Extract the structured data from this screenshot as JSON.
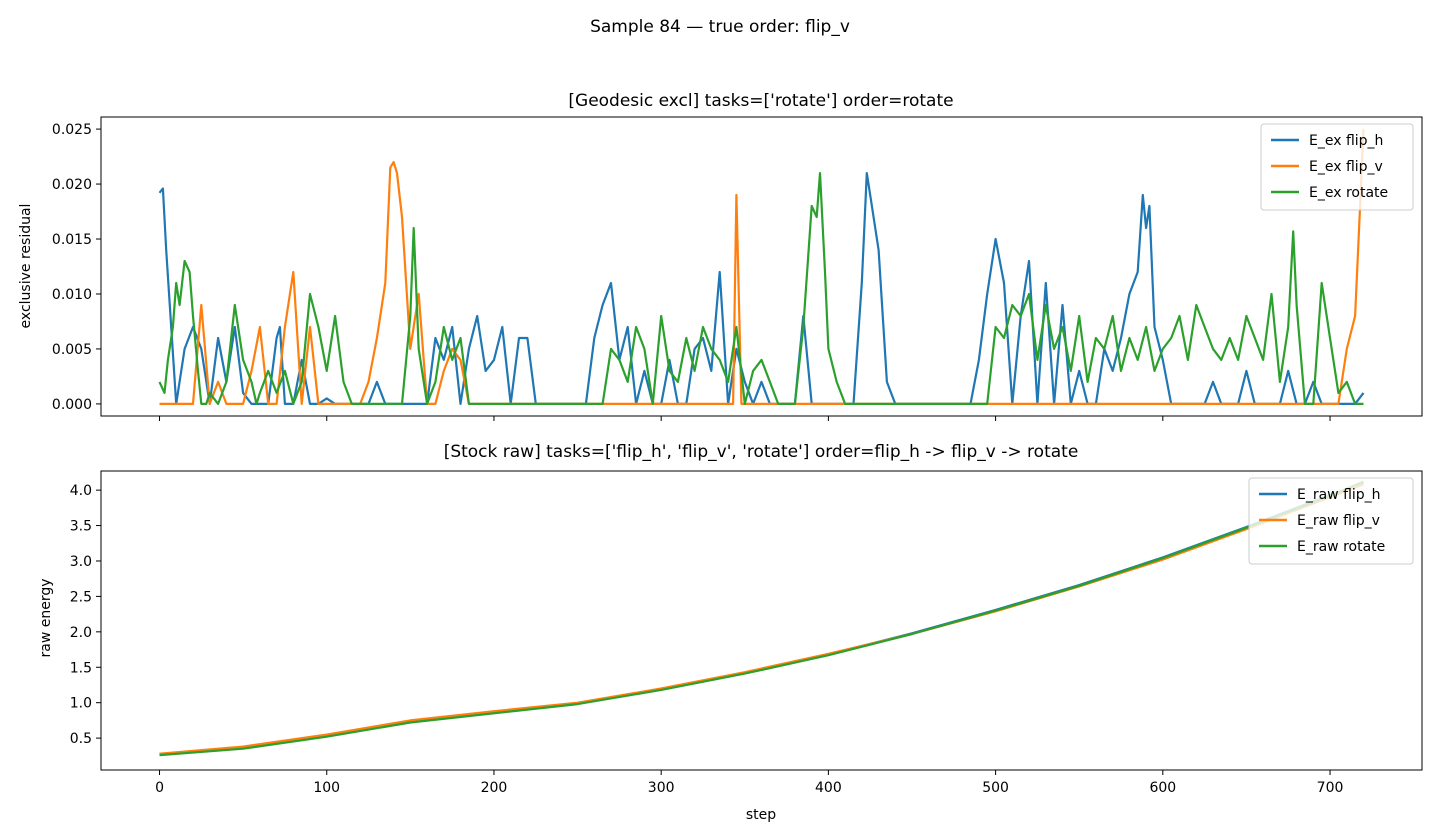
{
  "suptitle": "Sample 84 — true order: flip_v",
  "colors": {
    "blue": "#1f77b4",
    "orange": "#ff7f0e",
    "green": "#2ca02c"
  },
  "chart_data": [
    {
      "type": "line",
      "title": "[Geodesic excl] tasks=['rotate'] order=rotate",
      "xlabel": "",
      "ylabel": "exclusive residual",
      "xlim": [
        -35,
        755
      ],
      "ylim": [
        -0.0011,
        0.0261
      ],
      "xticks": [
        0,
        100,
        200,
        300,
        400,
        500,
        600,
        700
      ],
      "yticks": [
        0.0,
        0.005,
        0.01,
        0.015,
        0.02,
        0.025
      ],
      "ytick_labels": [
        "0.000",
        "0.005",
        "0.010",
        "0.015",
        "0.020",
        "0.025"
      ],
      "legend": "top-right",
      "grid": false,
      "series": [
        {
          "name": "E_ex flip_h",
          "color": "#1f77b4",
          "x": [
            0,
            2,
            4,
            10,
            15,
            20,
            25,
            30,
            35,
            40,
            45,
            50,
            55,
            60,
            65,
            70,
            72,
            75,
            80,
            85,
            90,
            95,
            100,
            105,
            108,
            110,
            115,
            120,
            125,
            130,
            135,
            140,
            145,
            150,
            155,
            160,
            165,
            170,
            175,
            180,
            185,
            190,
            195,
            200,
            205,
            210,
            215,
            220,
            225,
            230,
            235,
            240,
            245,
            250,
            255,
            260,
            265,
            270,
            275,
            280,
            285,
            290,
            295,
            300,
            305,
            310,
            315,
            320,
            325,
            330,
            335,
            340,
            345,
            350,
            355,
            360,
            365,
            370,
            375,
            380,
            385,
            390,
            395,
            400,
            405,
            410,
            415,
            420,
            423,
            425,
            430,
            435,
            440,
            445,
            450,
            455,
            460,
            465,
            470,
            475,
            480,
            485,
            490,
            495,
            500,
            505,
            510,
            515,
            520,
            525,
            530,
            535,
            540,
            545,
            550,
            555,
            560,
            565,
            570,
            575,
            580,
            585,
            588,
            590,
            592,
            595,
            600,
            605,
            610,
            615,
            620,
            625,
            630,
            635,
            640,
            645,
            650,
            655,
            660,
            665,
            670,
            675,
            680,
            685,
            690,
            695,
            700,
            705,
            710,
            715,
            720
          ],
          "y": [
            0.0192,
            0.0196,
            0.014,
            0.0,
            0.005,
            0.007,
            0.005,
            0.0,
            0.006,
            0.002,
            0.007,
            0.001,
            0.0,
            0.0,
            0.0,
            0.006,
            0.007,
            0.0,
            0.0,
            0.004,
            0.0,
            0.0,
            0.0005,
            0.0,
            0.0,
            0.0,
            0.0,
            0.0,
            0.0,
            0.002,
            0.0,
            0.0,
            0.0,
            0.0,
            0.0,
            0.0,
            0.006,
            0.004,
            0.007,
            0.0,
            0.005,
            0.008,
            0.003,
            0.004,
            0.007,
            0.0,
            0.006,
            0.006,
            0.0,
            0.0,
            0.0,
            0.0,
            0.0,
            0.0,
            0.0,
            0.006,
            0.009,
            0.011,
            0.004,
            0.007,
            0.0,
            0.003,
            0.0,
            0.0,
            0.004,
            0.0,
            0.0,
            0.005,
            0.006,
            0.003,
            0.012,
            0.0,
            0.005,
            0.002,
            0.0,
            0.002,
            0.0,
            0.0,
            0.0,
            0.0,
            0.008,
            0.0,
            0.0,
            0.0,
            0.0,
            0.0,
            0.0,
            0.011,
            0.021,
            0.019,
            0.014,
            0.002,
            0.0,
            0.0,
            0.0,
            0.0,
            0.0,
            0.0,
            0.0,
            0.0,
            0.0,
            0.0,
            0.004,
            0.01,
            0.015,
            0.011,
            0.0,
            0.008,
            0.013,
            0.0,
            0.011,
            0.0,
            0.009,
            0.0,
            0.003,
            0.0,
            0.0,
            0.005,
            0.003,
            0.006,
            0.01,
            0.012,
            0.019,
            0.016,
            0.018,
            0.007,
            0.004,
            0.0,
            0.0,
            0.0,
            0.0,
            0.0,
            0.002,
            0.0,
            0.0,
            0.0,
            0.003,
            0.0,
            0.0,
            0.0,
            0.0,
            0.003,
            0.0,
            0.0,
            0.002,
            0.0,
            0.0,
            0.0,
            0.0,
            0.0,
            0.001
          ]
        },
        {
          "name": "E_ex flip_v",
          "color": "#ff7f0e",
          "x": [
            0,
            20,
            25,
            30,
            35,
            40,
            50,
            55,
            60,
            65,
            70,
            75,
            80,
            85,
            90,
            95,
            100,
            110,
            115,
            120,
            125,
            130,
            135,
            138,
            140,
            142,
            145,
            150,
            155,
            160,
            165,
            170,
            175,
            180,
            185,
            190,
            195,
            200,
            210,
            215,
            220,
            225,
            230,
            235,
            240,
            245,
            250,
            255,
            260,
            265,
            270,
            275,
            280,
            285,
            290,
            295,
            300,
            310,
            315,
            320,
            325,
            330,
            335,
            340,
            343,
            345,
            348,
            350,
            355,
            360,
            365,
            370,
            375,
            380,
            400,
            410,
            420,
            430,
            440,
            450,
            460,
            470,
            480,
            485,
            490,
            495,
            500,
            510,
            515,
            520,
            525,
            530,
            535,
            540,
            545,
            550,
            555,
            560,
            565,
            570,
            575,
            580,
            585,
            590,
            600,
            610,
            615,
            620,
            625,
            630,
            640,
            645,
            650,
            655,
            660,
            665,
            670,
            675,
            680,
            685,
            690,
            700,
            705,
            710,
            715,
            718,
            720
          ],
          "y": [
            0.0,
            0.0,
            0.009,
            0.0,
            0.002,
            0.0,
            0.0,
            0.003,
            0.007,
            0.0,
            0.0,
            0.007,
            0.012,
            0.0,
            0.007,
            0.0,
            0.0,
            0.0,
            0.0,
            0.0,
            0.002,
            0.006,
            0.011,
            0.0215,
            0.022,
            0.021,
            0.017,
            0.005,
            0.01,
            0.0,
            0.0,
            0.003,
            0.005,
            0.004,
            0.0,
            0.0,
            0.0,
            0.0,
            0.0,
            0.0,
            0.0,
            0.0,
            0.0,
            0.0,
            0.0,
            0.0,
            0.0,
            0.0,
            0.0,
            0.0,
            0.0,
            0.0,
            0.0,
            0.0,
            0.0,
            0.0,
            0.0,
            0.0,
            0.0,
            0.0,
            0.0,
            0.0,
            0.0,
            0.0,
            0.0,
            0.019,
            0.0,
            0.0,
            0.0,
            0.0,
            0.0,
            0.0,
            0.0,
            0.0,
            0.0,
            0.0,
            0.0,
            0.0,
            0.0,
            0.0,
            0.0,
            0.0,
            0.0,
            0.0,
            0.0,
            0.0,
            0.0,
            0.0,
            0.0,
            0.0,
            0.0,
            0.0,
            0.0,
            0.0,
            0.0,
            0.0,
            0.0,
            0.0,
            0.0,
            0.0,
            0.0,
            0.0,
            0.0,
            0.0,
            0.0,
            0.0,
            0.0,
            0.0,
            0.0,
            0.0,
            0.0,
            0.0,
            0.0,
            0.0,
            0.0,
            0.0,
            0.0,
            0.0,
            0.0,
            0.0,
            0.0,
            0.0,
            0.0,
            0.005,
            0.008,
            0.018,
            0.025
          ]
        },
        {
          "name": "E_ex rotate",
          "color": "#2ca02c",
          "x": [
            0,
            3,
            5,
            8,
            10,
            12,
            15,
            18,
            20,
            23,
            25,
            28,
            30,
            35,
            40,
            45,
            50,
            55,
            58,
            60,
            65,
            70,
            75,
            80,
            85,
            90,
            95,
            100,
            105,
            110,
            115,
            120,
            125,
            130,
            135,
            140,
            145,
            150,
            152,
            155,
            160,
            165,
            170,
            175,
            180,
            185,
            190,
            195,
            200,
            205,
            210,
            215,
            220,
            225,
            230,
            235,
            240,
            245,
            250,
            255,
            260,
            265,
            270,
            275,
            280,
            285,
            290,
            295,
            300,
            305,
            310,
            315,
            320,
            325,
            330,
            335,
            340,
            345,
            350,
            355,
            360,
            365,
            370,
            375,
            380,
            385,
            390,
            393,
            395,
            398,
            400,
            405,
            410,
            415,
            420,
            425,
            430,
            435,
            440,
            445,
            450,
            455,
            460,
            465,
            470,
            475,
            480,
            485,
            490,
            495,
            500,
            505,
            510,
            515,
            520,
            525,
            530,
            535,
            540,
            545,
            550,
            555,
            560,
            565,
            570,
            575,
            580,
            585,
            590,
            595,
            600,
            605,
            610,
            615,
            620,
            625,
            630,
            635,
            640,
            645,
            650,
            655,
            660,
            665,
            670,
            675,
            678,
            680,
            685,
            690,
            695,
            700,
            705,
            710,
            715,
            720
          ],
          "y": [
            0.002,
            0.001,
            0.004,
            0.007,
            0.011,
            0.009,
            0.013,
            0.012,
            0.008,
            0.003,
            0.0,
            0.0,
            0.001,
            0.0,
            0.002,
            0.009,
            0.004,
            0.002,
            0.0,
            0.001,
            0.003,
            0.001,
            0.003,
            0.0,
            0.002,
            0.01,
            0.007,
            0.003,
            0.008,
            0.002,
            0.0,
            0.0,
            0.0,
            0.0,
            0.0,
            0.0,
            0.0,
            0.008,
            0.016,
            0.005,
            0.0,
            0.002,
            0.007,
            0.004,
            0.006,
            0.0,
            0.0,
            0.0,
            0.0,
            0.0,
            0.0,
            0.0,
            0.0,
            0.0,
            0.0,
            0.0,
            0.0,
            0.0,
            0.0,
            0.0,
            0.0,
            0.0,
            0.005,
            0.004,
            0.002,
            0.007,
            0.005,
            0.0,
            0.008,
            0.003,
            0.002,
            0.006,
            0.003,
            0.007,
            0.005,
            0.004,
            0.002,
            0.007,
            0.0,
            0.003,
            0.004,
            0.002,
            0.0,
            0.0,
            0.0,
            0.007,
            0.018,
            0.017,
            0.021,
            0.012,
            0.005,
            0.002,
            0.0,
            0.0,
            0.0,
            0.0,
            0.0,
            0.0,
            0.0,
            0.0,
            0.0,
            0.0,
            0.0,
            0.0,
            0.0,
            0.0,
            0.0,
            0.0,
            0.0,
            0.0,
            0.007,
            0.006,
            0.009,
            0.008,
            0.01,
            0.004,
            0.009,
            0.005,
            0.007,
            0.003,
            0.008,
            0.002,
            0.006,
            0.005,
            0.008,
            0.003,
            0.006,
            0.004,
            0.007,
            0.003,
            0.005,
            0.006,
            0.008,
            0.004,
            0.009,
            0.007,
            0.005,
            0.004,
            0.006,
            0.004,
            0.008,
            0.006,
            0.004,
            0.01,
            0.002,
            0.007,
            0.0157,
            0.009,
            0.0,
            0.0,
            0.011,
            0.006,
            0.001,
            0.002,
            0.0,
            0.0
          ]
        }
      ]
    },
    {
      "type": "line",
      "title": "[Stock raw] tasks=['flip_h', 'flip_v', 'rotate'] order=flip_h -> flip_v -> rotate",
      "xlabel": "step",
      "ylabel": "raw energy",
      "xlim": [
        -35,
        755
      ],
      "ylim": [
        0.05,
        4.27
      ],
      "xticks": [
        0,
        100,
        200,
        300,
        400,
        500,
        600,
        700
      ],
      "yticks": [
        0.5,
        1.0,
        1.5,
        2.0,
        2.5,
        3.0,
        3.5,
        4.0
      ],
      "ytick_labels": [
        "0.5",
        "1.0",
        "1.5",
        "2.0",
        "2.5",
        "3.0",
        "3.5",
        "4.0"
      ],
      "legend": "top-right",
      "grid": false,
      "series": [
        {
          "name": "E_raw flip_h",
          "color": "#1f77b4",
          "x": [
            0,
            50,
            100,
            150,
            200,
            250,
            300,
            350,
            400,
            450,
            500,
            550,
            600,
            650,
            700,
            720
          ],
          "y": [
            0.27,
            0.36,
            0.53,
            0.73,
            0.86,
            0.99,
            1.19,
            1.42,
            1.68,
            1.98,
            2.31,
            2.66,
            3.05,
            3.48,
            3.93,
            4.1
          ]
        },
        {
          "name": "E_raw flip_v",
          "color": "#ff7f0e",
          "x": [
            0,
            50,
            100,
            150,
            200,
            250,
            300,
            350,
            400,
            450,
            500,
            550,
            600,
            650,
            700,
            720
          ],
          "y": [
            0.28,
            0.38,
            0.55,
            0.75,
            0.88,
            1.0,
            1.2,
            1.43,
            1.69,
            1.97,
            2.29,
            2.64,
            3.02,
            3.45,
            3.9,
            4.08
          ]
        },
        {
          "name": "E_raw rotate",
          "color": "#2ca02c",
          "x": [
            0,
            50,
            100,
            150,
            200,
            250,
            300,
            350,
            400,
            450,
            500,
            550,
            600,
            650,
            700,
            720
          ],
          "y": [
            0.26,
            0.35,
            0.52,
            0.72,
            0.85,
            0.98,
            1.18,
            1.41,
            1.67,
            1.97,
            2.3,
            2.65,
            3.04,
            3.47,
            3.92,
            4.12
          ]
        }
      ]
    }
  ]
}
